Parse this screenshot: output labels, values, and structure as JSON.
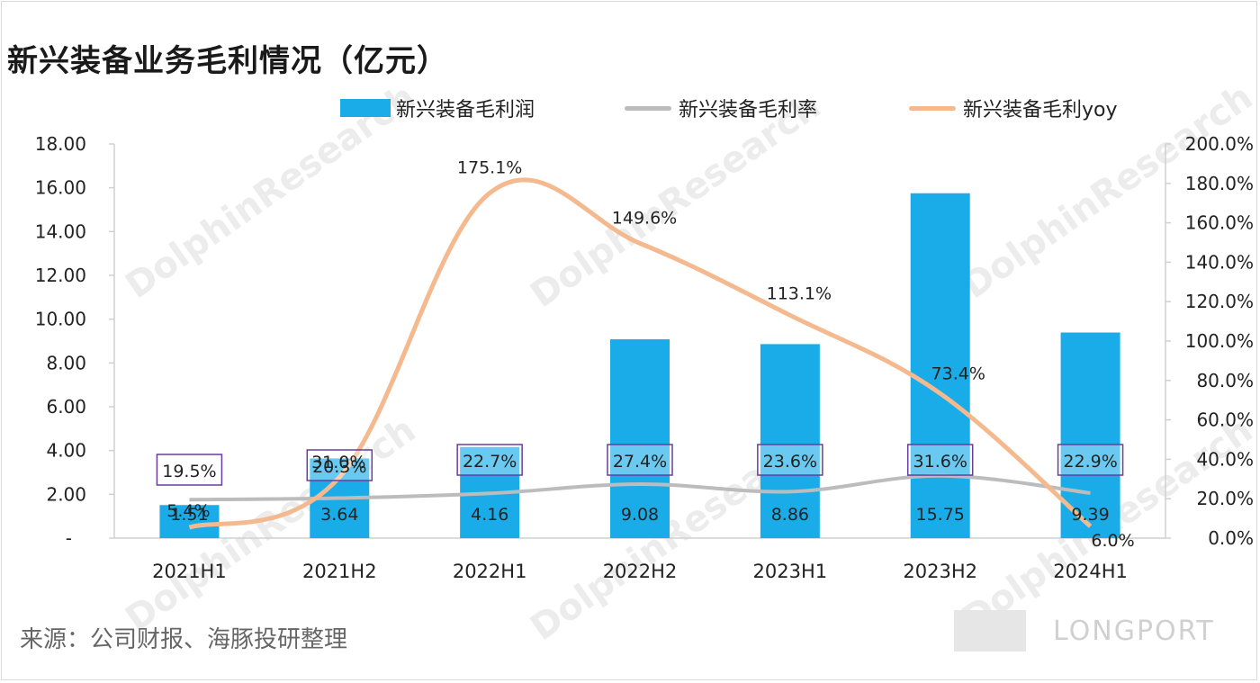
{
  "title": "新兴装备业务毛利情况（亿元）",
  "source": "来源：公司财报、海豚投研整理",
  "watermarks": {
    "text_cn": "海豚投研",
    "text_en": "DolphinResearch"
  },
  "logo": {
    "text": "LONGPORT"
  },
  "colors": {
    "bar": "#1aace8",
    "margin_line": "#bcbcbc",
    "yoy_line": "#f4b98e",
    "margin_box": "#6a3d9a"
  },
  "chart_data": {
    "type": "bar",
    "categories": [
      "2021H1",
      "2021H2",
      "2022H1",
      "2022H2",
      "2023H1",
      "2023H2",
      "2024H1"
    ],
    "series": [
      {
        "name": "新兴装备毛利润",
        "type": "bar",
        "axis": "left",
        "values": [
          1.51,
          3.64,
          4.16,
          9.08,
          8.86,
          15.75,
          9.39
        ],
        "labels": [
          "1.51",
          "3.64",
          "4.16",
          "9.08",
          "8.86",
          "15.75",
          "9.39"
        ]
      },
      {
        "name": "新兴装备毛利率",
        "type": "line",
        "axis": "right",
        "values": [
          19.5,
          20.3,
          22.7,
          27.4,
          23.6,
          31.6,
          22.9
        ],
        "labels": [
          "19.5%",
          "20.3%",
          "22.7%",
          "27.4%",
          "23.6%",
          "31.6%",
          "22.9%"
        ]
      },
      {
        "name": "新兴装备毛利yoy",
        "type": "line",
        "axis": "right",
        "smooth": true,
        "values": [
          5.4,
          31.0,
          175.1,
          149.6,
          113.1,
          73.4,
          6.0
        ],
        "labels": [
          "5.4%",
          "31.0%",
          "175.1%",
          "149.6%",
          "113.1%",
          "73.4%",
          "6.0%"
        ]
      }
    ],
    "left_axis": {
      "ylim": [
        0,
        18
      ],
      "ticks": [
        "-",
        "2.00",
        "4.00",
        "6.00",
        "8.00",
        "10.00",
        "12.00",
        "14.00",
        "16.00",
        "18.00"
      ]
    },
    "right_axis": {
      "ylim": [
        0,
        200
      ],
      "ticks": [
        "0.0%",
        "20.0%",
        "40.0%",
        "60.0%",
        "80.0%",
        "100.0%",
        "120.0%",
        "140.0%",
        "160.0%",
        "180.0%",
        "200.0%"
      ]
    },
    "legend": "top",
    "grid": false
  }
}
